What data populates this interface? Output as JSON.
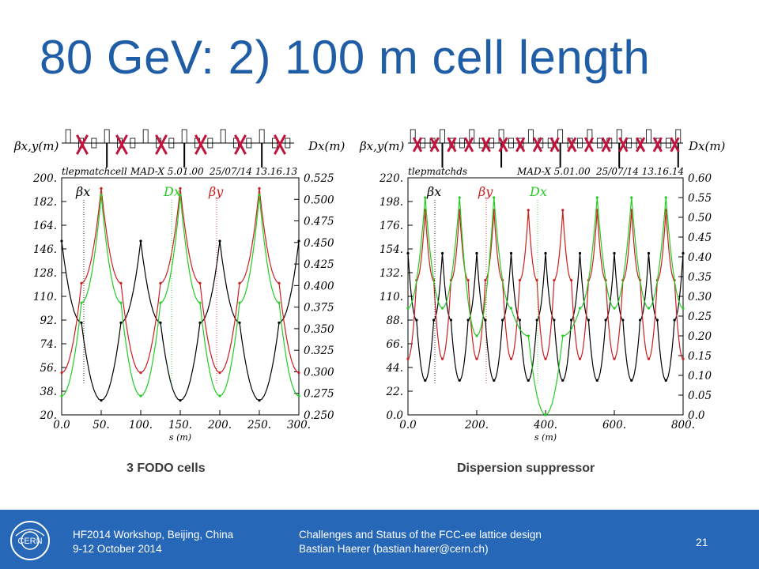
{
  "slide": {
    "title": "80 GeV: 2) 100 m cell length",
    "page_number": "21"
  },
  "footer": {
    "left_line1": "HF2014 Workshop, Beijing, China",
    "left_line2": "9-12 October 2014",
    "mid_line1": "Challenges and Status of the FCC-ee lattice design",
    "mid_line2": "Bastian Haerer (bastian.harer@cern.ch)"
  },
  "colors": {
    "title": "#1f5da6",
    "footer_bg": "#2667b8",
    "beta_x": "#000000",
    "beta_y": "#cc1f1f",
    "dispersion": "#22cc22",
    "cross_mark": "#c0143c"
  },
  "chart_data": [
    {
      "type": "line",
      "caption": "3 FODO cells",
      "header_left": "tlepmatchcell",
      "header_mid": "MAD-X 5.01.00",
      "header_right": "25/07/14 13.16.13",
      "left_axis_label": "βx,y(m)",
      "right_axis_label": "Dx(m)",
      "xlabel": "s (m)",
      "xlim": [
        0,
        300
      ],
      "ylim_left": [
        20,
        200
      ],
      "ylim_right": [
        0.25,
        0.525
      ],
      "x_ticks": [
        "0.0",
        "50.",
        "100.",
        "150.",
        "200.",
        "250.",
        "300."
      ],
      "y_ticks_left": [
        "200.",
        "182.",
        "164.",
        "146.",
        "128.",
        "110.",
        "92.",
        "74.",
        "56.",
        "38.",
        "20."
      ],
      "y_ticks_right": [
        "0.525",
        "0.500",
        "0.475",
        "0.450",
        "0.425",
        "0.400",
        "0.375",
        "0.350",
        "0.325",
        "0.300",
        "0.275",
        "0.250"
      ],
      "legend_labels": [
        "βx",
        "Dx",
        "βy"
      ],
      "crossed_out_elements": 6,
      "series": [
        {
          "name": "βx",
          "x": [
            0,
            25,
            50,
            75,
            100,
            125,
            150,
            175,
            200,
            225,
            250,
            275,
            300
          ],
          "values": [
            152,
            90,
            31,
            90,
            152,
            90,
            31,
            90,
            152,
            90,
            31,
            90,
            152
          ]
        },
        {
          "name": "βy",
          "x": [
            0,
            25,
            50,
            75,
            100,
            125,
            150,
            175,
            200,
            225,
            250,
            275,
            300
          ],
          "values": [
            52,
            120,
            192,
            120,
            52,
            120,
            192,
            120,
            52,
            120,
            192,
            120,
            52
          ]
        },
        {
          "name": "Dx",
          "x": [
            0,
            25,
            50,
            75,
            100,
            125,
            150,
            175,
            200,
            225,
            250,
            275,
            300
          ],
          "values": [
            0.272,
            0.38,
            0.505,
            0.38,
            0.272,
            0.38,
            0.505,
            0.38,
            0.272,
            0.38,
            0.505,
            0.38,
            0.272
          ]
        }
      ]
    },
    {
      "type": "line",
      "caption": "Dispersion suppressor",
      "header_left": "tlepmatchds",
      "header_mid": "MAD-X 5.01.00",
      "header_right": "25/07/14 13.16.14",
      "left_axis_label": "βx,y(m)",
      "right_axis_label": "Dx(m)",
      "xlabel": "s (m)",
      "xlim": [
        0,
        800
      ],
      "ylim_left": [
        0,
        220
      ],
      "ylim_right": [
        0,
        0.6
      ],
      "x_ticks": [
        "0.0",
        "200.",
        "400.",
        "600.",
        "800."
      ],
      "y_ticks_left": [
        "220.",
        "198.",
        "176.",
        "154.",
        "132.",
        "110.",
        "88.",
        "66.",
        "44.",
        "22.",
        "0.0"
      ],
      "y_ticks_right": [
        "0.60",
        "0.55",
        "0.50",
        "0.45",
        "0.40",
        "0.35",
        "0.30",
        "0.25",
        "0.20",
        "0.15",
        "0.10",
        "0.05",
        "0.0"
      ],
      "legend_labels": [
        "βx",
        "βy",
        "Dx"
      ],
      "crossed_out_elements": 16,
      "series": [
        {
          "name": "βx",
          "x": [
            0,
            25,
            50,
            75,
            100,
            125,
            150,
            175,
            200,
            225,
            250,
            275,
            300,
            325,
            350,
            375,
            400,
            425,
            450,
            475,
            500,
            525,
            550,
            575,
            600,
            625,
            650,
            675,
            700,
            725,
            750,
            775,
            800
          ],
          "values": [
            150,
            88,
            32,
            88,
            150,
            88,
            32,
            88,
            150,
            88,
            32,
            88,
            150,
            88,
            32,
            88,
            150,
            88,
            32,
            88,
            150,
            88,
            32,
            88,
            150,
            88,
            32,
            88,
            150,
            88,
            32,
            88,
            150
          ]
        },
        {
          "name": "βy",
          "x": [
            0,
            25,
            50,
            75,
            100,
            125,
            150,
            175,
            200,
            225,
            250,
            275,
            300,
            325,
            350,
            375,
            400,
            425,
            450,
            475,
            500,
            525,
            550,
            575,
            600,
            625,
            650,
            675,
            700,
            725,
            750,
            775,
            800
          ],
          "values": [
            52,
            125,
            190,
            125,
            52,
            125,
            190,
            125,
            52,
            125,
            190,
            125,
            52,
            125,
            190,
            125,
            52,
            125,
            190,
            125,
            52,
            125,
            190,
            125,
            52,
            125,
            190,
            125,
            52,
            125,
            190,
            125,
            52
          ]
        },
        {
          "name": "Dx",
          "x": [
            0,
            50,
            100,
            150,
            200,
            250,
            300,
            350,
            400,
            450,
            500,
            550,
            600,
            650,
            700,
            750,
            800
          ],
          "values": [
            0.27,
            0.55,
            0.27,
            0.55,
            0.2,
            0.55,
            0.27,
            0.2,
            0.0,
            0.2,
            0.27,
            0.55,
            0.27,
            0.55,
            0.27,
            0.55,
            0.27
          ]
        }
      ]
    }
  ]
}
